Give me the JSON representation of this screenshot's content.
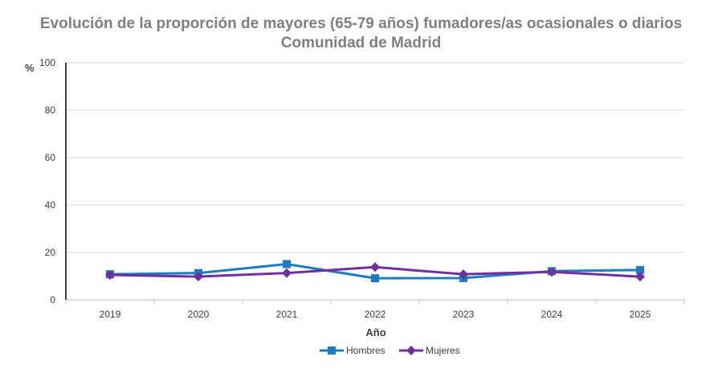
{
  "chart_data": {
    "type": "line",
    "title": "Evolución de la proporción de mayores (65-79 años) fumadores/as ocasionales o diarios",
    "subtitle": "Comunidad de Madrid",
    "xlabel": "Año",
    "ylabel": "%",
    "categories": [
      "2019",
      "2020",
      "2021",
      "2022",
      "2023",
      "2024",
      "2025"
    ],
    "yticks": [
      "0",
      "20",
      "40",
      "60",
      "80",
      "100"
    ],
    "ylim": [
      0,
      100
    ],
    "grid": true,
    "legend_position": "bottom",
    "series": [
      {
        "name": "Hombres",
        "values": [
          10.8,
          11.3,
          15.1,
          9.1,
          9.2,
          12.1,
          12.6
        ],
        "color": "#1a7cc1",
        "marker": "square"
      },
      {
        "name": "Mujeres",
        "values": [
          10.5,
          9.8,
          11.3,
          13.8,
          10.8,
          11.8,
          9.8
        ],
        "color": "#7030a0",
        "marker": "diamond"
      }
    ]
  }
}
